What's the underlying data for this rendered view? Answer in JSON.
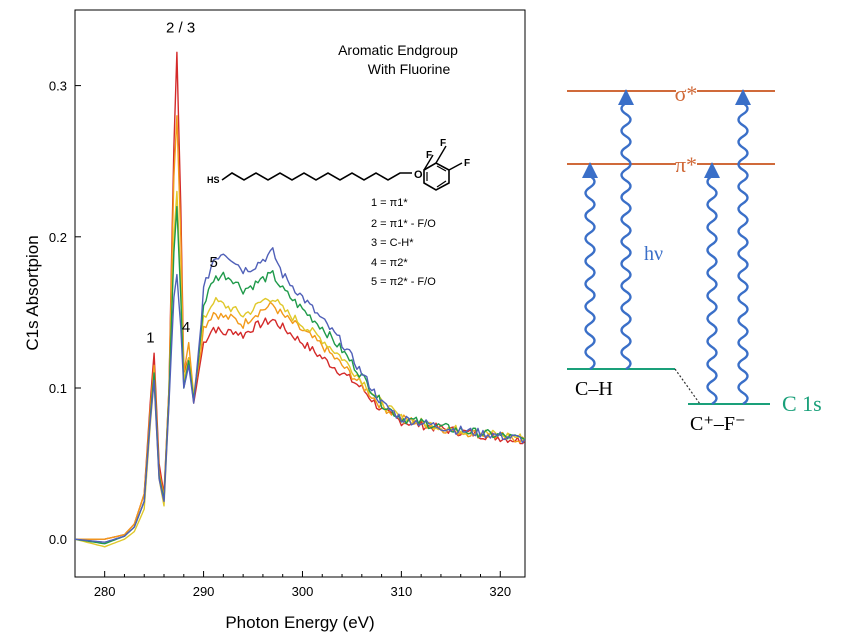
{
  "chart_data": {
    "type": "line",
    "xlabel": "Photon Energy (eV)",
    "ylabel": "C1s Absortpion",
    "xlim": [
      277,
      322.5
    ],
    "ylim": [
      -0.025,
      0.35
    ],
    "xticks": [
      280,
      290,
      300,
      310,
      320
    ],
    "yticks": [
      0.0,
      0.1,
      0.2,
      0.3
    ],
    "title": "Aromatic Endgroup",
    "subtitle": "With Fluorine",
    "colors": {
      "red": "#d42a2a",
      "orange": "#f29a1a",
      "yellow": "#e0c82a",
      "green": "#1f9a4a",
      "blue": "#5060b8"
    },
    "series": [
      {
        "color": "#d42a2a",
        "x": [
          277,
          280,
          282,
          283,
          284,
          284.6,
          285,
          285.5,
          286,
          286.5,
          287,
          287.3,
          287.7,
          288,
          288.5,
          289,
          289.5,
          290,
          291,
          292,
          293,
          294,
          295,
          296,
          297,
          298,
          300,
          302,
          304,
          306,
          308,
          310,
          315,
          322.5
        ],
        "y": [
          0.0,
          0.0,
          0.003,
          0.01,
          0.03,
          0.09,
          0.123,
          0.05,
          0.03,
          0.1,
          0.26,
          0.322,
          0.22,
          0.11,
          0.12,
          0.09,
          0.11,
          0.13,
          0.14,
          0.136,
          0.138,
          0.135,
          0.14,
          0.143,
          0.145,
          0.14,
          0.13,
          0.12,
          0.11,
          0.1,
          0.085,
          0.078,
          0.072,
          0.065
        ]
      },
      {
        "color": "#f29a1a",
        "x": [
          277,
          280,
          282,
          283,
          284,
          284.6,
          285,
          285.5,
          286,
          286.5,
          287,
          287.3,
          287.7,
          288,
          288.5,
          289,
          289.5,
          290,
          291,
          292,
          293,
          294,
          295,
          296,
          297,
          298,
          300,
          302,
          304,
          306,
          308,
          310,
          315,
          322.5
        ],
        "y": [
          0.0,
          0.0,
          0.003,
          0.01,
          0.03,
          0.085,
          0.115,
          0.045,
          0.028,
          0.1,
          0.24,
          0.28,
          0.2,
          0.11,
          0.13,
          0.095,
          0.115,
          0.14,
          0.15,
          0.147,
          0.146,
          0.142,
          0.148,
          0.152,
          0.155,
          0.148,
          0.138,
          0.128,
          0.115,
          0.102,
          0.088,
          0.08,
          0.072,
          0.066
        ]
      },
      {
        "color": "#e0c82a",
        "x": [
          277,
          280,
          282,
          283,
          284,
          284.6,
          285,
          285.5,
          286,
          286.5,
          287,
          287.3,
          287.7,
          288,
          288.5,
          289,
          289.5,
          290,
          291,
          292,
          293,
          294,
          295,
          296,
          297,
          298,
          300,
          302,
          304,
          306,
          308,
          310,
          315,
          322.5
        ],
        "y": [
          0.0,
          -0.005,
          0.0,
          0.005,
          0.02,
          0.075,
          0.105,
          0.04,
          0.022,
          0.09,
          0.2,
          0.23,
          0.17,
          0.105,
          0.12,
          0.095,
          0.12,
          0.145,
          0.158,
          0.155,
          0.152,
          0.148,
          0.152,
          0.158,
          0.16,
          0.152,
          0.142,
          0.132,
          0.12,
          0.105,
          0.09,
          0.08,
          0.073,
          0.067
        ]
      },
      {
        "color": "#1f9a4a",
        "x": [
          277,
          280,
          282,
          283,
          284,
          284.6,
          285,
          285.5,
          286,
          286.5,
          287,
          287.3,
          287.7,
          288,
          288.5,
          289,
          289.5,
          290,
          291,
          292,
          293,
          294,
          295,
          296,
          297,
          298,
          300,
          302,
          304,
          306,
          308,
          310,
          315,
          322.5
        ],
        "y": [
          0.0,
          -0.003,
          0.002,
          0.008,
          0.025,
          0.08,
          0.11,
          0.042,
          0.026,
          0.095,
          0.19,
          0.22,
          0.16,
          0.1,
          0.118,
          0.092,
          0.12,
          0.155,
          0.172,
          0.175,
          0.172,
          0.165,
          0.168,
          0.172,
          0.175,
          0.165,
          0.152,
          0.14,
          0.125,
          0.108,
          0.09,
          0.08,
          0.073,
          0.066
        ]
      },
      {
        "color": "#5060b8",
        "x": [
          277,
          280,
          282,
          283,
          284,
          284.6,
          285,
          285.5,
          286,
          286.5,
          287,
          287.3,
          287.7,
          288,
          288.5,
          289,
          289.5,
          290,
          291,
          292,
          293,
          294,
          295,
          296,
          297,
          298,
          300,
          302,
          304,
          306,
          308,
          310,
          315,
          322.5
        ],
        "y": [
          0.0,
          -0.002,
          0.002,
          0.008,
          0.025,
          0.078,
          0.105,
          0.04,
          0.025,
          0.09,
          0.16,
          0.175,
          0.14,
          0.1,
          0.115,
          0.09,
          0.125,
          0.165,
          0.185,
          0.19,
          0.185,
          0.178,
          0.18,
          0.185,
          0.19,
          0.175,
          0.16,
          0.145,
          0.13,
          0.11,
          0.09,
          0.08,
          0.073,
          0.066
        ]
      }
    ],
    "peak_labels": [
      {
        "text": "1",
        "x": 284.2,
        "y": 0.13
      },
      {
        "text": "2 / 3",
        "x": 286.2,
        "y": 0.335
      },
      {
        "text": "4",
        "x": 287.8,
        "y": 0.137
      },
      {
        "text": "5",
        "x": 290.6,
        "y": 0.18
      }
    ]
  },
  "legend_lines": [
    "1 = π1*",
    "2 = π1* - F/O",
    "3 = C-H*",
    "4 = π2*",
    "5 = π2* - F/O"
  ],
  "molecule": {
    "thiol": "HS",
    "oxygen": "O",
    "fluorines": [
      "F",
      "F",
      "F"
    ]
  },
  "diagram": {
    "sigma_label": "σ*",
    "pi_label": "π*",
    "hv_label": "hν",
    "ch_label": "C–H",
    "cf_label": "C⁺–F⁻",
    "c1s_label": "C 1s",
    "colors": {
      "level": "#d06a3a",
      "ground": "#1aa07a",
      "arrow": "#3a6fc8",
      "label_orange": "#d06a3a",
      "label_blue": "#3a6fc8"
    }
  }
}
